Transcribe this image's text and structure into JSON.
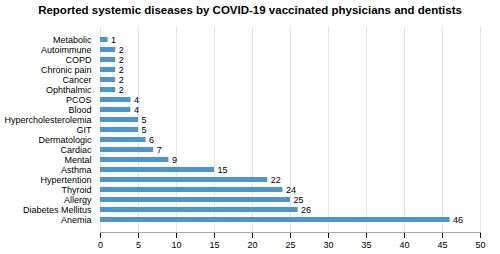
{
  "chart_data": {
    "type": "bar",
    "orientation": "horizontal",
    "title": "Reported systemic diseases by COVID-19 vaccinated physicians and dentists",
    "categories": [
      "Anemia",
      "Diabetes Mellitus",
      "Allergy",
      "Thyroid",
      "Hypertention",
      "Asthma",
      "Mental",
      "Cardiac",
      "Dermatologic",
      "GIT",
      "Hypercholesterolemia",
      "Blood",
      "PCOS",
      "Ophthalmic",
      "Cancer",
      "Chronic pain",
      "COPD",
      "Autoimmune",
      "Metabolic"
    ],
    "values": [
      46,
      26,
      25,
      24,
      22,
      15,
      9,
      7,
      6,
      5,
      5,
      4,
      4,
      2,
      2,
      2,
      2,
      2,
      1
    ],
    "color": "#4d96c9",
    "xlim": [
      0,
      50
    ],
    "xticks": [
      0,
      5,
      10,
      15,
      20,
      25,
      30,
      35,
      40,
      45,
      50
    ],
    "grid": true,
    "data_labels": true
  }
}
